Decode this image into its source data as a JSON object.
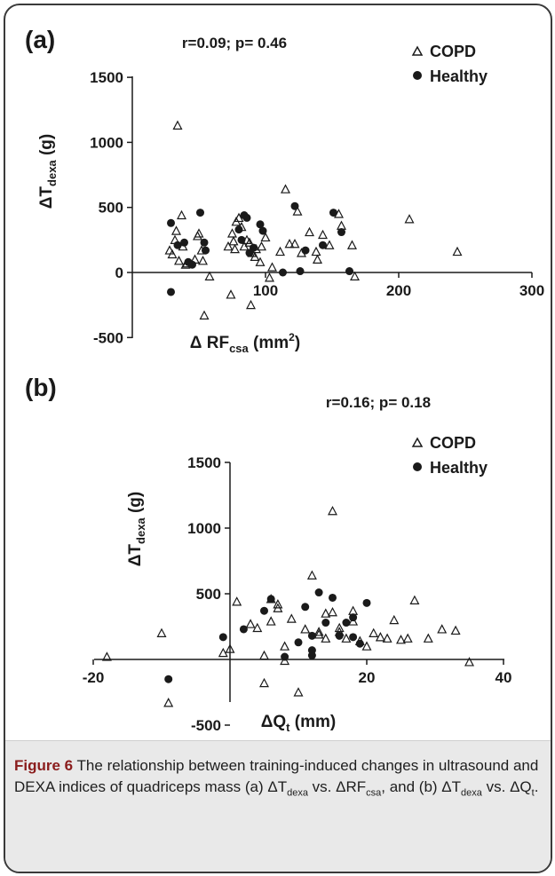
{
  "chart_data": [
    {
      "type": "scatter",
      "panel_label": "(a)",
      "stats": "r=0.09; p= 0.46",
      "ylabel": {
        "main": "ΔT",
        "sub": "dexa",
        "unit": " (g)"
      },
      "xlabel": {
        "main": "Δ RF",
        "sub": "csa",
        "unit": " (mm",
        "sup": "2",
        "close": ")"
      },
      "xlim": [
        0,
        300
      ],
      "ylim": [
        -500,
        1500
      ],
      "xticks": [
        "100",
        "200",
        "300"
      ],
      "yticks": [
        "-500",
        "0",
        "500",
        "1000",
        "1500"
      ],
      "legend_position": "top-right",
      "series": [
        {
          "name": "COPD",
          "marker": "open-triangle",
          "points": [
            [
              28,
              170
            ],
            [
              30,
              140
            ],
            [
              32,
              250
            ],
            [
              33,
              320
            ],
            [
              34,
              1130
            ],
            [
              35,
              90
            ],
            [
              37,
              440
            ],
            [
              38,
              200
            ],
            [
              40,
              60
            ],
            [
              41,
              70
            ],
            [
              47,
              100
            ],
            [
              49,
              280
            ],
            [
              50,
              300
            ],
            [
              52,
              170
            ],
            [
              53,
              90
            ],
            [
              54,
              -330
            ],
            [
              58,
              -30
            ],
            [
              72,
              200
            ],
            [
              74,
              -170
            ],
            [
              75,
              300
            ],
            [
              76,
              240
            ],
            [
              77,
              180
            ],
            [
              78,
              390
            ],
            [
              80,
              420
            ],
            [
              82,
              350
            ],
            [
              84,
              200
            ],
            [
              86,
              250
            ],
            [
              88,
              230
            ],
            [
              89,
              -250
            ],
            [
              90,
              150
            ],
            [
              92,
              120
            ],
            [
              93,
              180
            ],
            [
              96,
              80
            ],
            [
              97,
              200
            ],
            [
              100,
              270
            ],
            [
              103,
              -40
            ],
            [
              105,
              40
            ],
            [
              111,
              160
            ],
            [
              115,
              640
            ],
            [
              118,
              220
            ],
            [
              122,
              220
            ],
            [
              124,
              470
            ],
            [
              127,
              150
            ],
            [
              133,
              310
            ],
            [
              138,
              160
            ],
            [
              139,
              100
            ],
            [
              143,
              290
            ],
            [
              148,
              210
            ],
            [
              155,
              450
            ],
            [
              157,
              360
            ],
            [
              165,
              210
            ],
            [
              167,
              -30
            ],
            [
              208,
              410
            ],
            [
              244,
              160
            ]
          ]
        },
        {
          "name": "Healthy",
          "marker": "filled-circle",
          "points": [
            [
              29,
              380
            ],
            [
              29,
              -150
            ],
            [
              34,
              210
            ],
            [
              39,
              230
            ],
            [
              42,
              80
            ],
            [
              45,
              60
            ],
            [
              51,
              460
            ],
            [
              54,
              230
            ],
            [
              55,
              170
            ],
            [
              80,
              330
            ],
            [
              82,
              250
            ],
            [
              84,
              440
            ],
            [
              86,
              420
            ],
            [
              88,
              150
            ],
            [
              91,
              190
            ],
            [
              96,
              370
            ],
            [
              98,
              320
            ],
            [
              113,
              0
            ],
            [
              122,
              510
            ],
            [
              126,
              10
            ],
            [
              130,
              170
            ],
            [
              143,
              210
            ],
            [
              151,
              460
            ],
            [
              157,
              310
            ],
            [
              163,
              10
            ]
          ]
        }
      ]
    },
    {
      "type": "scatter",
      "panel_label": "(b)",
      "stats": "r=0.16; p= 0.18",
      "ylabel": {
        "main": "ΔT",
        "sub": "dexa",
        "unit": " (g)"
      },
      "xlabel": {
        "main": "ΔQ",
        "sub": "t",
        "unit": " (mm)",
        "sup": "",
        "close": ""
      },
      "xlim": [
        -20,
        40
      ],
      "ylim": [
        -500,
        1500
      ],
      "xticks": [
        "-20",
        "20",
        "40"
      ],
      "yticks": [
        "-500",
        "500",
        "1000",
        "1500"
      ],
      "legend_position": "top-right",
      "series": [
        {
          "name": "COPD",
          "marker": "open-triangle",
          "points": [
            [
              -18,
              20
            ],
            [
              -10,
              200
            ],
            [
              -9,
              -330
            ],
            [
              -1,
              50
            ],
            [
              0,
              80
            ],
            [
              1,
              440
            ],
            [
              3,
              270
            ],
            [
              4,
              240
            ],
            [
              5,
              -180
            ],
            [
              5,
              30
            ],
            [
              6,
              460
            ],
            [
              6,
              290
            ],
            [
              7,
              390
            ],
            [
              7,
              420
            ],
            [
              8,
              100
            ],
            [
              8,
              -10
            ],
            [
              9,
              310
            ],
            [
              10,
              -250
            ],
            [
              11,
              230
            ],
            [
              12,
              640
            ],
            [
              13,
              190
            ],
            [
              13,
              210
            ],
            [
              14,
              350
            ],
            [
              14,
              160
            ],
            [
              15,
              1130
            ],
            [
              15,
              360
            ],
            [
              16,
              210
            ],
            [
              16,
              240
            ],
            [
              17,
              160
            ],
            [
              18,
              370
            ],
            [
              18,
              290
            ],
            [
              19,
              140
            ],
            [
              20,
              100
            ],
            [
              21,
              200
            ],
            [
              22,
              170
            ],
            [
              23,
              160
            ],
            [
              24,
              300
            ],
            [
              25,
              150
            ],
            [
              26,
              160
            ],
            [
              27,
              450
            ],
            [
              29,
              160
            ],
            [
              31,
              230
            ],
            [
              33,
              220
            ],
            [
              35,
              -20
            ]
          ]
        },
        {
          "name": "Healthy",
          "marker": "filled-circle",
          "points": [
            [
              -9,
              -150
            ],
            [
              -1,
              170
            ],
            [
              2,
              230
            ],
            [
              5,
              370
            ],
            [
              6,
              460
            ],
            [
              8,
              20
            ],
            [
              10,
              130
            ],
            [
              11,
              400
            ],
            [
              12,
              180
            ],
            [
              12,
              30
            ],
            [
              12,
              70
            ],
            [
              13,
              510
            ],
            [
              14,
              280
            ],
            [
              15,
              470
            ],
            [
              16,
              180
            ],
            [
              17,
              280
            ],
            [
              18,
              320
            ],
            [
              18,
              170
            ],
            [
              19,
              120
            ],
            [
              20,
              430
            ]
          ]
        }
      ]
    }
  ],
  "caption": {
    "lead": "Figure 6",
    "text": "The relationship between training-induced changes in ultrasound and DEXA indices of quadriceps mass (a) ΔT",
    "sub1": "dexa",
    "text2": " vs. ΔRF",
    "sub2": "csa",
    "text3": ", and (b) ΔT",
    "sub3": "dexa",
    "text4": " vs. ΔQ",
    "sub4": "t",
    "text5": "."
  }
}
